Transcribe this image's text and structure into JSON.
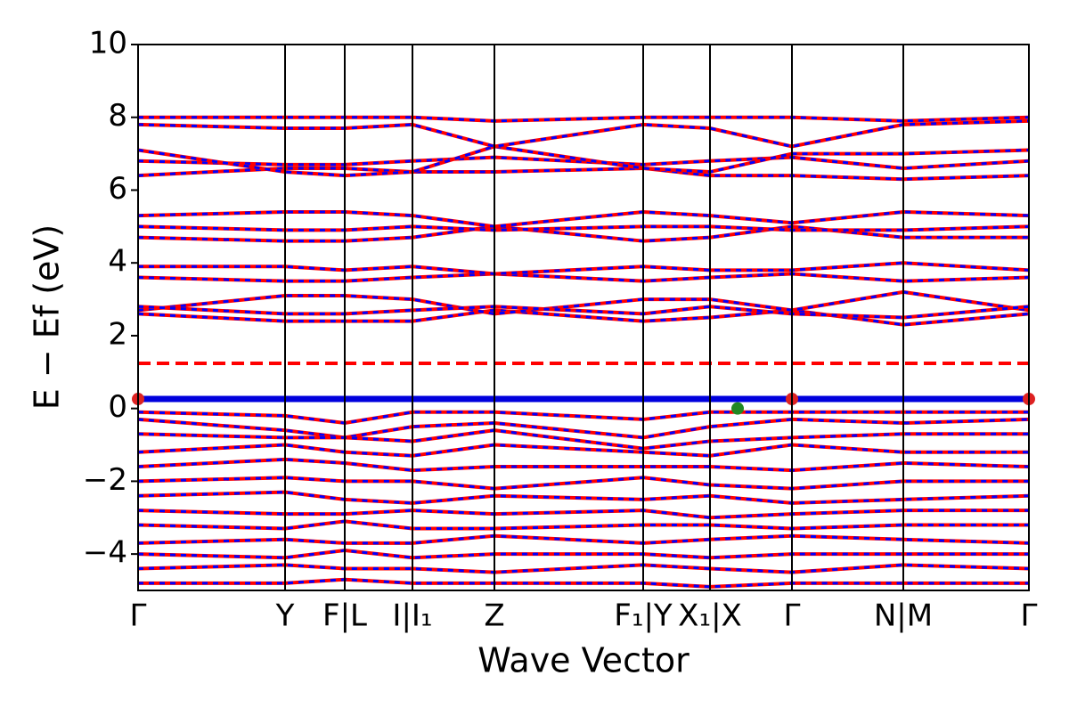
{
  "chart_data": {
    "type": "band",
    "xlabel": "Wave Vector",
    "ylabel": "E − Ef (eV)",
    "xlim": [
      0,
      1
    ],
    "ylim": [
      -5,
      10
    ],
    "xticks": [
      {
        "value": 0,
        "label": "Γ"
      },
      {
        "value": 0.165,
        "label": "Y"
      },
      {
        "value": 0.232,
        "label": "F|L"
      },
      {
        "value": 0.308,
        "label": "I|I₁"
      },
      {
        "value": 0.4,
        "label": "Z"
      },
      {
        "value": 0.567,
        "label": "F₁|Y"
      },
      {
        "value": 0.642,
        "label": "X₁|X"
      },
      {
        "value": 0.734,
        "label": "Γ"
      },
      {
        "value": 0.859,
        "label": "N|M"
      },
      {
        "value": 1.0,
        "label": "Γ"
      }
    ],
    "yticks": [
      {
        "value": -4,
        "label": "−4"
      },
      {
        "value": -2,
        "label": "−2"
      },
      0,
      2,
      4,
      6,
      8,
      10
    ],
    "x": [
      0,
      0.165,
      0.232,
      0.308,
      0.4,
      0.567,
      0.642,
      0.734,
      0.859,
      1.0
    ],
    "color": "#ff0000",
    "overlay_color": "#0000ff",
    "bands": [
      [
        2.6,
        2.4,
        2.4,
        2.4,
        2.7,
        2.4,
        2.5,
        2.7,
        2.3,
        2.6
      ],
      [
        2.7,
        3.1,
        3.1,
        3.0,
        2.6,
        3.0,
        3.0,
        2.7,
        3.2,
        2.7
      ],
      [
        2.8,
        2.6,
        2.6,
        2.7,
        2.8,
        2.6,
        2.8,
        2.6,
        2.5,
        2.8
      ],
      [
        3.6,
        3.5,
        3.5,
        3.6,
        3.7,
        3.5,
        3.6,
        3.7,
        3.5,
        3.6
      ],
      [
        3.9,
        3.9,
        3.8,
        3.9,
        3.7,
        3.9,
        3.8,
        3.8,
        4.0,
        3.8
      ],
      [
        4.7,
        4.6,
        4.6,
        4.7,
        5.0,
        4.6,
        4.7,
        5.0,
        4.7,
        4.7
      ],
      [
        5.3,
        5.4,
        5.4,
        5.3,
        5.0,
        5.4,
        5.3,
        5.1,
        5.4,
        5.3
      ],
      [
        5.0,
        4.9,
        4.9,
        5.0,
        4.9,
        5.0,
        5.0,
        4.9,
        4.9,
        5.0
      ],
      [
        6.4,
        6.6,
        6.6,
        6.5,
        6.5,
        6.6,
        6.4,
        6.4,
        6.3,
        6.4
      ],
      [
        6.8,
        6.7,
        6.7,
        6.8,
        6.9,
        6.7,
        6.8,
        6.9,
        6.6,
        6.8
      ],
      [
        7.1,
        6.5,
        6.4,
        6.5,
        7.2,
        6.6,
        6.5,
        7.0,
        7.0,
        7.1
      ],
      [
        7.8,
        7.7,
        7.7,
        7.8,
        7.2,
        7.8,
        7.7,
        7.2,
        7.8,
        7.9
      ],
      [
        8.0,
        8.0,
        8.0,
        8.0,
        7.9,
        8.0,
        8.0,
        8.0,
        7.9,
        8.0
      ],
      [
        -0.1,
        -0.2,
        -0.4,
        -0.1,
        -0.1,
        -0.3,
        -0.1,
        -0.1,
        -0.1,
        -0.1
      ],
      [
        -0.3,
        -0.6,
        -0.8,
        -0.5,
        -0.4,
        -0.8,
        -0.5,
        -0.3,
        -0.4,
        -0.3
      ],
      [
        -0.7,
        -0.8,
        -0.8,
        -0.9,
        -0.6,
        -1.1,
        -0.9,
        -0.8,
        -0.7,
        -0.7
      ],
      [
        -1.2,
        -1.0,
        -1.2,
        -1.3,
        -1.0,
        -1.2,
        -1.3,
        -1.0,
        -1.2,
        -1.2
      ],
      [
        -1.6,
        -1.4,
        -1.5,
        -1.7,
        -1.6,
        -1.6,
        -1.6,
        -1.7,
        -1.5,
        -1.6
      ],
      [
        -2.0,
        -1.9,
        -2.0,
        -2.0,
        -2.2,
        -1.9,
        -2.1,
        -2.2,
        -2.0,
        -2.0
      ],
      [
        -2.4,
        -2.3,
        -2.5,
        -2.6,
        -2.4,
        -2.5,
        -2.4,
        -2.6,
        -2.5,
        -2.4
      ],
      [
        -2.8,
        -2.9,
        -2.9,
        -2.8,
        -2.9,
        -2.8,
        -3.0,
        -2.9,
        -2.8,
        -2.8
      ],
      [
        -3.2,
        -3.3,
        -3.1,
        -3.3,
        -3.3,
        -3.2,
        -3.2,
        -3.3,
        -3.2,
        -3.2
      ],
      [
        -3.7,
        -3.6,
        -3.7,
        -3.7,
        -3.5,
        -3.7,
        -3.6,
        -3.5,
        -3.6,
        -3.7
      ],
      [
        -4.0,
        -4.1,
        -3.9,
        -4.1,
        -4.0,
        -4.0,
        -4.1,
        -4.0,
        -4.0,
        -4.0
      ],
      [
        -4.4,
        -4.3,
        -4.4,
        -4.4,
        -4.5,
        -4.3,
        -4.4,
        -4.5,
        -4.3,
        -4.4
      ],
      [
        -4.8,
        -4.8,
        -4.7,
        -4.8,
        -4.8,
        -4.8,
        -4.9,
        -4.8,
        -4.8,
        -4.8
      ]
    ],
    "hlines": [
      {
        "value": 0.26,
        "color": "#0000dd",
        "dashed": false
      },
      {
        "value": 1.24,
        "color": "#ff0000",
        "dashed": true
      }
    ],
    "points": [
      {
        "x": 0,
        "y": 0.26,
        "color": "#dd2222"
      },
      {
        "x": 0.734,
        "y": 0.26,
        "color": "#dd2222"
      },
      {
        "x": 1.0,
        "y": 0.26,
        "color": "#dd2222"
      },
      {
        "x": 0.673,
        "y": 0.0,
        "color": "#228822"
      }
    ]
  }
}
